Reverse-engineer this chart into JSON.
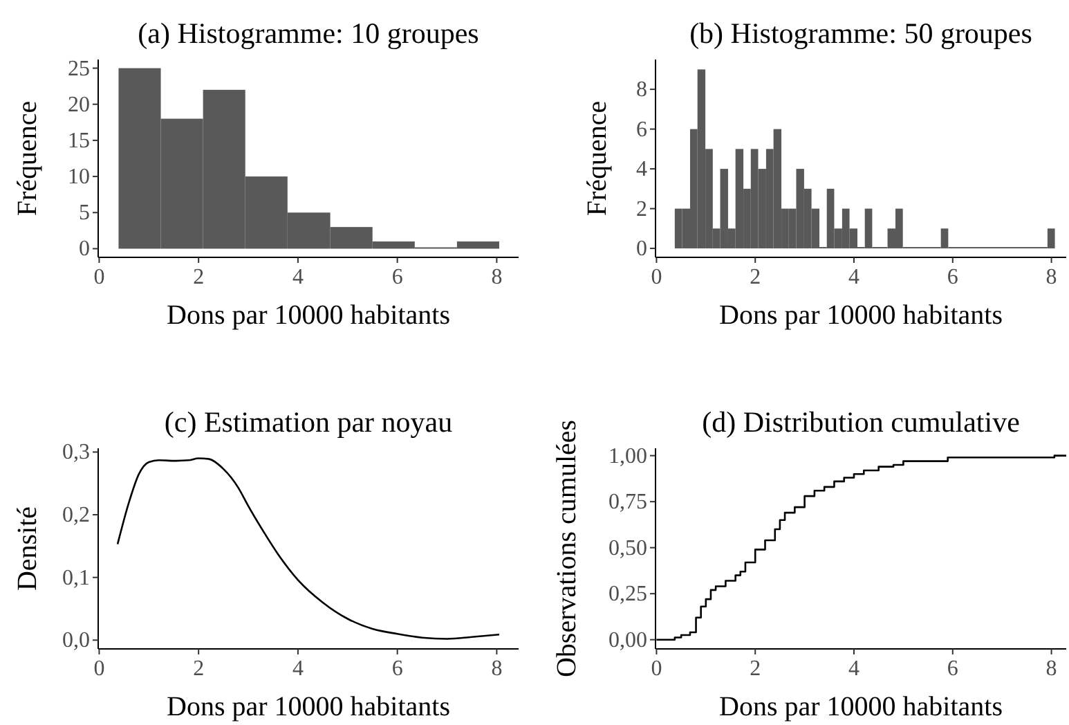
{
  "chart_data": [
    {
      "type": "histogram",
      "title": "(a) Histogramme: 10 groupes",
      "xlabel": "Dons par 10000 habitants",
      "ylabel": "Fréquence",
      "bins": [
        0.39,
        1.24,
        2.09,
        2.94,
        3.79,
        4.65,
        5.5,
        6.35,
        7.2,
        8.05
      ],
      "values": [
        25,
        18,
        22,
        10,
        5,
        3,
        1,
        0,
        1
      ],
      "color": "#595959",
      "xlim": [
        -0.02,
        8.44
      ],
      "xticks": [
        0,
        2,
        4,
        6,
        8
      ],
      "ylim": [
        -1.2,
        26.2
      ],
      "yticks": [
        0,
        5,
        10,
        15,
        20,
        25
      ]
    },
    {
      "type": "histogram",
      "title": "(b) Histogramme: 50 groupes",
      "xlabel": "Dons par 10000 habitants",
      "ylabel": "Fréquence",
      "bins": [
        0.37,
        0.52,
        0.68,
        0.83,
        0.99,
        1.14,
        1.29,
        1.45,
        1.6,
        1.76,
        1.91,
        2.06,
        2.22,
        2.37,
        2.53,
        2.68,
        2.83,
        2.99,
        3.14,
        3.3,
        3.45,
        3.6,
        3.76,
        3.91,
        4.07,
        4.22,
        4.37,
        4.68,
        4.84,
        4.99,
        5.76,
        5.91,
        7.92,
        8.07
      ],
      "values": [
        2,
        2,
        6,
        9,
        5,
        1,
        4,
        1,
        5,
        3,
        5,
        4,
        5,
        6,
        2,
        2,
        4,
        3,
        2,
        0,
        3,
        1,
        2,
        1,
        0,
        2,
        0,
        1,
        2,
        0,
        1,
        0,
        1
      ],
      "color": "#595959",
      "xlim": [
        -0.02,
        8.3
      ],
      "xticks": [
        0,
        2,
        4,
        6,
        8
      ],
      "ylim": [
        -0.45,
        9.5
      ],
      "yticks": [
        0,
        2,
        4,
        6,
        8
      ]
    },
    {
      "type": "line",
      "title": "(c) Estimation par noyau",
      "xlabel": "Dons par 10000 habitants",
      "ylabel": "Densité",
      "x": [
        0.37,
        0.6,
        0.8,
        1.0,
        1.2,
        1.5,
        1.8,
        2.0,
        2.2,
        2.5,
        2.8,
        3.0,
        3.3,
        3.6,
        4.0,
        4.5,
        5.0,
        5.5,
        6.0,
        6.5,
        7.0,
        7.5,
        8.05
      ],
      "values": [
        0.153,
        0.22,
        0.265,
        0.284,
        0.287,
        0.286,
        0.287,
        0.29,
        0.289,
        0.273,
        0.243,
        0.214,
        0.174,
        0.137,
        0.096,
        0.06,
        0.034,
        0.018,
        0.01,
        0.004,
        0.002,
        0.005,
        0.009
      ],
      "color": "#000000",
      "xlim": [
        -0.02,
        8.44
      ],
      "xticks": [
        0,
        2,
        4,
        6,
        8
      ],
      "ylim": [
        -0.014,
        0.306
      ],
      "yticks": [
        {
          "value": 0,
          "label": "0,0"
        },
        {
          "value": 0.1,
          "label": "0,1"
        },
        {
          "value": 0.2,
          "label": "0,2"
        },
        {
          "value": 0.3,
          "label": "0,3"
        }
      ]
    },
    {
      "type": "step",
      "title": "(d) Distribution cumulative",
      "xlabel": "Dons par 10000 habitants",
      "ylabel": "Observations cumulées",
      "x": [
        0,
        0.37,
        0.5,
        0.68,
        0.8,
        0.9,
        1.0,
        1.1,
        1.2,
        1.4,
        1.6,
        1.7,
        1.8,
        2.0,
        2.2,
        2.4,
        2.5,
        2.6,
        2.8,
        3.0,
        3.2,
        3.4,
        3.6,
        3.8,
        4.0,
        4.2,
        4.5,
        4.8,
        5.0,
        5.9,
        8.06,
        8.3
      ],
      "values": [
        0,
        0.012,
        0.025,
        0.04,
        0.12,
        0.18,
        0.22,
        0.27,
        0.29,
        0.32,
        0.35,
        0.37,
        0.42,
        0.49,
        0.54,
        0.6,
        0.65,
        0.69,
        0.72,
        0.78,
        0.81,
        0.83,
        0.86,
        0.88,
        0.9,
        0.92,
        0.94,
        0.95,
        0.97,
        0.99,
        1.0,
        1.0
      ],
      "color": "#000000",
      "xlim": [
        -0.02,
        8.3
      ],
      "xticks": [
        0,
        2,
        4,
        6,
        8
      ],
      "ylim": [
        -0.05,
        1.04
      ],
      "yticks": [
        {
          "value": 0,
          "label": "0,00"
        },
        {
          "value": 0.25,
          "label": "0,25"
        },
        {
          "value": 0.5,
          "label": "0,50"
        },
        {
          "value": 0.75,
          "label": "0,75"
        },
        {
          "value": 1,
          "label": "1,00"
        }
      ]
    }
  ]
}
